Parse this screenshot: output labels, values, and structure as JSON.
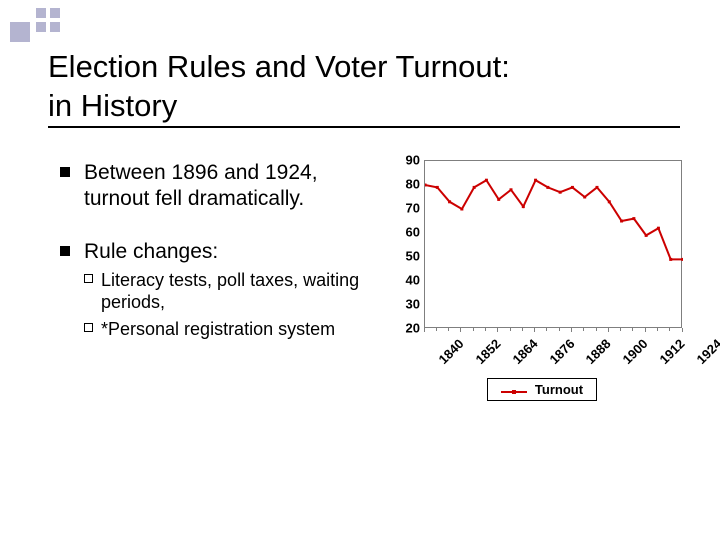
{
  "title_line1": "Election Rules and Voter Turnout:",
  "title_line2": "in History",
  "bullets": [
    {
      "text": "Between 1896 and 1924, turnout fell dramatically."
    },
    {
      "text": "Rule changes:",
      "subs": [
        "Literacy tests, poll taxes, waiting periods,",
        "*Personal registration system"
      ]
    }
  ],
  "chart": {
    "type": "line",
    "series_name": "Turnout",
    "line_color": "#cc0000",
    "line_width": 2,
    "marker_color": "#cc0000",
    "marker_size": 3,
    "border_color": "#7f7f7f",
    "background_color": "#ffffff",
    "ylim": [
      20,
      90
    ],
    "yticks": [
      20,
      30,
      40,
      50,
      60,
      70,
      80,
      90
    ],
    "xlabels": [
      "1840",
      "1852",
      "1864",
      "1876",
      "1888",
      "1900",
      "1912",
      "1924"
    ],
    "years": [
      1840,
      1844,
      1848,
      1852,
      1856,
      1860,
      1864,
      1868,
      1872,
      1876,
      1880,
      1884,
      1888,
      1892,
      1896,
      1900,
      1904,
      1908,
      1912,
      1916,
      1920,
      1924
    ],
    "values": [
      80,
      79,
      73,
      70,
      79,
      82,
      74,
      78,
      71,
      82,
      79,
      77,
      79,
      75,
      79,
      73,
      65,
      66,
      59,
      62,
      49,
      49
    ],
    "tick_fontsize": 13,
    "tick_fontweight": "bold",
    "legend_border_color": "#000000"
  },
  "deco_color": "#b4b4d0"
}
